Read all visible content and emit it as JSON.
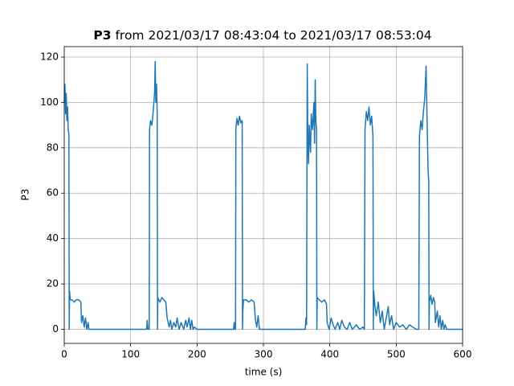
{
  "chart_data": {
    "type": "line",
    "title_parts": [
      "P3",
      "from 2021/03/17 08:43:04 to 2021/03/17 08:53:04"
    ],
    "xlabel": "time (s)",
    "ylabel": "P3",
    "xlim": [
      0,
      600
    ],
    "ylim": [
      -6.2,
      124.6
    ],
    "xticks": [
      0,
      100,
      200,
      300,
      400,
      500,
      600
    ],
    "yticks": [
      0,
      20,
      40,
      60,
      80,
      100,
      120
    ],
    "grid": true,
    "series": [
      {
        "color": "#1f77b4",
        "x": [
          0,
          1,
          2,
          3,
          4,
          5,
          6,
          7,
          7.5,
          8,
          9,
          12,
          15,
          18,
          22,
          25,
          26,
          28,
          30,
          32,
          34,
          36,
          37,
          60,
          100,
          124,
          125,
          126,
          128,
          128.5,
          130,
          132,
          134,
          136,
          137,
          138,
          139,
          140,
          140.5,
          141,
          144,
          147,
          150,
          153,
          155,
          158,
          160,
          162,
          165,
          168,
          170,
          173,
          176,
          180,
          183,
          185,
          188,
          190,
          192,
          194,
          196,
          200,
          230,
          255,
          256,
          257,
          258,
          258.5,
          260,
          262,
          264,
          266,
          268,
          268.5,
          269,
          270,
          274,
          278,
          282,
          286,
          288,
          290,
          292,
          294,
          330,
          363,
          364,
          365,
          366,
          367,
          368,
          369,
          371,
          372,
          374,
          376,
          377,
          378,
          379,
          380,
          380.5,
          381,
          384,
          388,
          392,
          395,
          396,
          399,
          402,
          405,
          408,
          412,
          415,
          418,
          422,
          426,
          430,
          434,
          440,
          445,
          450,
          452,
          453,
          455,
          457,
          459,
          461,
          463,
          465,
          465.5,
          466,
          468,
          470,
          473,
          476,
          479,
          482,
          485,
          488,
          490,
          493,
          496,
          500,
          505,
          510,
          515,
          520,
          525,
          530,
          534,
          535,
          537,
          539,
          541,
          543,
          545,
          546,
          547,
          548,
          549,
          549.5,
          550,
          552,
          554,
          556,
          558,
          559,
          562,
          564,
          566,
          568,
          570,
          572,
          574,
          576,
          600
        ],
        "values": [
          100,
          108,
          95,
          104,
          92,
          98,
          88,
          86,
          0,
          17,
          13,
          13,
          12,
          13,
          13,
          12,
          3,
          6,
          1,
          5,
          0,
          3,
          0,
          0,
          0,
          0,
          4,
          0,
          0,
          88,
          92,
          90,
          96,
          104,
          118,
          100,
          108,
          95,
          0,
          14,
          12,
          14,
          13,
          12,
          5,
          1,
          4,
          0,
          3,
          1,
          5,
          0,
          3,
          0,
          4,
          1,
          5,
          0,
          4,
          0,
          1,
          0,
          0,
          0,
          3,
          0,
          0,
          88,
          93,
          90,
          94,
          91,
          92,
          0,
          8,
          13,
          13,
          12,
          13,
          12,
          4,
          1,
          6,
          0,
          0,
          0,
          5,
          2,
          117,
          80,
          73,
          90,
          78,
          95,
          88,
          100,
          82,
          110,
          92,
          88,
          0,
          14,
          13,
          12,
          13,
          11,
          3,
          0,
          5,
          2,
          0,
          3,
          0,
          4,
          1,
          0,
          3,
          0,
          2,
          0,
          1,
          0,
          88,
          96,
          92,
          98,
          90,
          94,
          85,
          0,
          17,
          10,
          6,
          12,
          3,
          8,
          0,
          5,
          10,
          2,
          6,
          0,
          3,
          1,
          2,
          0,
          2,
          1,
          0,
          0,
          85,
          92,
          88,
          96,
          102,
          116,
          100,
          85,
          70,
          65,
          0,
          12,
          15,
          11,
          14,
          12,
          3,
          8,
          1,
          6,
          0,
          4,
          0,
          2,
          0,
          0
        ]
      }
    ]
  }
}
